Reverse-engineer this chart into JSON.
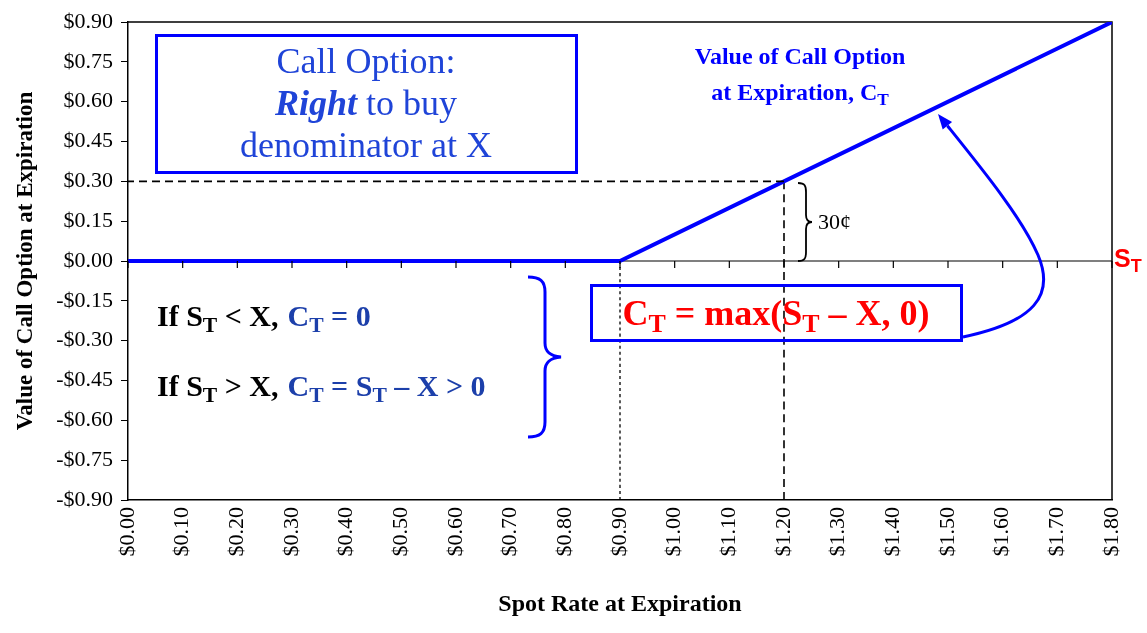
{
  "chart_data": {
    "type": "line",
    "xlabel": "Spot Rate at Expiration",
    "ylabel": "Value of Call Option at Expiration",
    "xlim": [
      0,
      1.8
    ],
    "ylim": [
      -0.9,
      0.9
    ],
    "xticks": [
      {
        "value": 0,
        "label": "$0.00"
      },
      {
        "value": 0.1,
        "label": "$0.10"
      },
      {
        "value": 0.2,
        "label": "$0.20"
      },
      {
        "value": 0.3,
        "label": "$0.30"
      },
      {
        "value": 0.4,
        "label": "$0.40"
      },
      {
        "value": 0.5,
        "label": "$0.50"
      },
      {
        "value": 0.6,
        "label": "$0.60"
      },
      {
        "value": 0.7,
        "label": "$0.70"
      },
      {
        "value": 0.8,
        "label": "$0.80"
      },
      {
        "value": 0.9,
        "label": "$0.90"
      },
      {
        "value": 1.0,
        "label": "$1.00"
      },
      {
        "value": 1.1,
        "label": "$1.10"
      },
      {
        "value": 1.2,
        "label": "$1.20"
      },
      {
        "value": 1.3,
        "label": "$1.30"
      },
      {
        "value": 1.4,
        "label": "$1.40"
      },
      {
        "value": 1.5,
        "label": "$1.50"
      },
      {
        "value": 1.6,
        "label": "$1.60"
      },
      {
        "value": 1.7,
        "label": "$1.70"
      },
      {
        "value": 1.8,
        "label": "$1.80"
      }
    ],
    "yticks": [
      {
        "value": -0.9,
        "label": "-$0.90"
      },
      {
        "value": -0.75,
        "label": "-$0.75"
      },
      {
        "value": -0.6,
        "label": "-$0.60"
      },
      {
        "value": -0.45,
        "label": "-$0.45"
      },
      {
        "value": -0.3,
        "label": "-$0.30"
      },
      {
        "value": -0.15,
        "label": "-$0.15"
      },
      {
        "value": 0,
        "label": "$0.00"
      },
      {
        "value": 0.15,
        "label": "$0.15"
      },
      {
        "value": 0.3,
        "label": "$0.30"
      },
      {
        "value": 0.45,
        "label": "$0.45"
      },
      {
        "value": 0.6,
        "label": "$0.60"
      },
      {
        "value": 0.75,
        "label": "$0.75"
      },
      {
        "value": 0.9,
        "label": "$0.90"
      }
    ],
    "grid": false,
    "legend": false,
    "marker": "none",
    "series": [
      {
        "name": "Value of Call Option at Expiration, C$_{T}$",
        "color": "#0000ff",
        "x": [
          0,
          0.9,
          1.8
        ],
        "values": [
          0,
          0,
          0.9
        ],
        "line_style": "solid"
      },
      {
        "color": "#000000",
        "x": [
          1.2,
          0
        ],
        "values": [
          0.3,
          0.3
        ],
        "line_style": "dashed"
      }
    ],
    "ref_lines": [
      {
        "axis": "x",
        "value": 1.2,
        "color": "#000000",
        "line_style": "dashed"
      },
      {
        "axis": "x",
        "value": 0.9,
        "color": "#000000",
        "line_style": "dotted"
      }
    ],
    "annotations": [
      "Call Option:\nRight to buy\ndenominator at X",
      "30¢",
      "S$_{T}$",
      "If S$_{T}$ < X,",
      "C$_{T}$ = 0",
      "If S$_{T}$ > X,",
      "C$_{T}$ = S$_{T}$ – X > 0",
      "C$_{T}$ = max(S$_{T}$ – X, 0)"
    ]
  }
}
